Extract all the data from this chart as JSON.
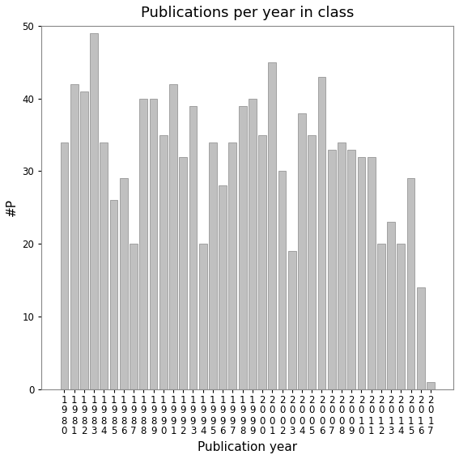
{
  "title": "Publications per year in class",
  "xlabel": "Publication year",
  "ylabel": "#P",
  "years": [
    "1980",
    "1981",
    "1982",
    "1983",
    "1984",
    "1985",
    "1986",
    "1987",
    "1988",
    "1989",
    "1990",
    "1991",
    "1992",
    "1993",
    "1994",
    "1995",
    "1996",
    "1997",
    "1998",
    "1999",
    "2000",
    "2001",
    "2002",
    "2003",
    "2004",
    "2005",
    "2006",
    "2007",
    "2008",
    "2009",
    "2010",
    "2011",
    "2012",
    "2013",
    "2014",
    "2015",
    "2016",
    "2017"
  ],
  "values": [
    34,
    42,
    41,
    49,
    34,
    26,
    29,
    20,
    40,
    40,
    35,
    42,
    32,
    39,
    20,
    34,
    28,
    34,
    39,
    40,
    35,
    45,
    30,
    19,
    38,
    35,
    43,
    33,
    34,
    33,
    32,
    32,
    20,
    23,
    20,
    29,
    14,
    1
  ],
  "bar_color": "#c0c0c0",
  "bar_edge_color": "#888888",
  "ylim": [
    0,
    50
  ],
  "yticks": [
    0,
    10,
    20,
    30,
    40,
    50
  ],
  "background_color": "#ffffff",
  "title_fontsize": 13,
  "label_fontsize": 11,
  "tick_fontsize": 8.5
}
